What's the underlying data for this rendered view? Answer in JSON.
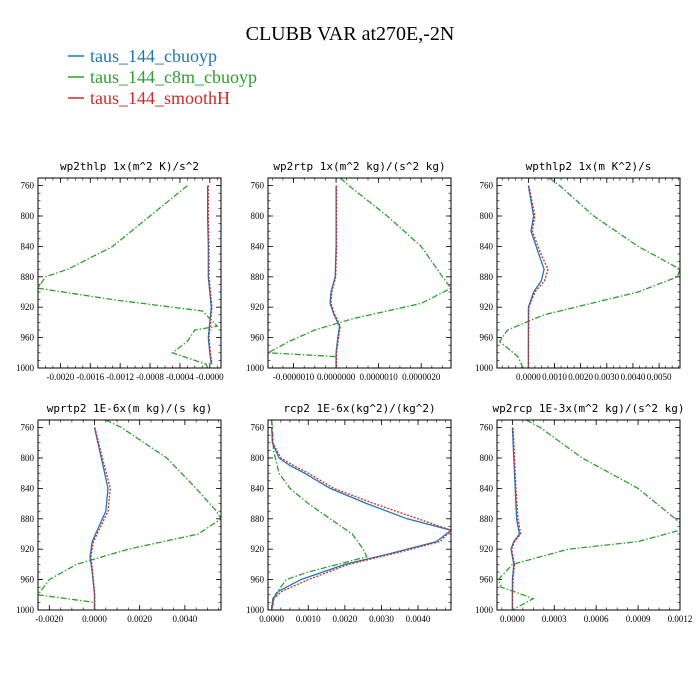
{
  "figure": {
    "title": "CLUBB VAR at270E,-2N"
  },
  "legend": [
    {
      "name": "taus_144_cbuoyp",
      "color": "#1f77b4",
      "dash": "solid"
    },
    {
      "name": "taus_144_c8m_cbuoyp",
      "color": "#2ca02c",
      "dash": "dashdot"
    },
    {
      "name": "taus_144_smoothH",
      "color": "#d62728",
      "dash": "dotted"
    }
  ],
  "chart_data": [
    {
      "type": "line",
      "title": "wp2thlp  1x(m^2 K)/s^2",
      "xlim": [
        -0.0023,
        0.00015
      ],
      "ylim": [
        1000,
        750
      ],
      "xticks": [
        -0.002,
        -0.0016,
        -0.0012,
        -0.0008,
        -0.0004,
        0.0
      ],
      "xtick_labels": [
        "-0.0020",
        "-0.0016",
        "-0.0012",
        "-0.0008",
        "-0.0004",
        "-0.0000"
      ],
      "yticks": [
        760,
        800,
        840,
        880,
        920,
        960,
        1000
      ],
      "series": [
        {
          "name": "taus_144_cbuoyp",
          "y": [
            760,
            800,
            840,
            880,
            900,
            920,
            940,
            960,
            980,
            995
          ],
          "x": [
            -3e-05,
            -3e-05,
            -2e-05,
            -2e-05,
            0.0,
            2e-05,
            0.0,
            -2e-05,
            0.0,
            2e-05
          ]
        },
        {
          "name": "taus_144_c8m_cbuoyp",
          "y": [
            760,
            800,
            840,
            870,
            880,
            895,
            910,
            925,
            945,
            950,
            965,
            980,
            995,
            1000
          ],
          "x": [
            -0.0003,
            -0.0008,
            -0.0013,
            -0.0019,
            -0.0022,
            -0.0023,
            -0.0013,
            -0.0001,
            0.0001,
            -0.0002,
            -0.0003,
            -0.0005,
            -5e-05,
            -3e-05
          ]
        },
        {
          "name": "taus_144_smoothH",
          "y": [
            760,
            800,
            840,
            880,
            900,
            920,
            940,
            960,
            980,
            995
          ],
          "x": [
            -2e-05,
            -2e-05,
            -1e-05,
            -1e-05,
            1e-05,
            3e-05,
            1e-05,
            -1e-05,
            1e-05,
            3e-05
          ]
        }
      ]
    },
    {
      "type": "line",
      "title": "wp2rtp  1x(m^2 kg)/(s^2 kg)",
      "xlim": [
        -1.6e-06,
        2.7e-06
      ],
      "ylim": [
        1000,
        750
      ],
      "xticks": [
        -1e-06,
        0.0,
        1e-06,
        2e-06
      ],
      "xtick_labels": [
        "-0.0000010",
        "0.0000000",
        "0.0000010",
        "0.0000020"
      ],
      "yticks": [
        760,
        800,
        840,
        880,
        920,
        960,
        1000
      ],
      "series": [
        {
          "name": "taus_144_cbuoyp",
          "y": [
            760,
            800,
            840,
            880,
            900,
            915,
            930,
            945,
            960,
            980,
            1000
          ],
          "x": [
            0.0,
            0.0,
            0.0,
            -2e-08,
            -1.2e-07,
            -1.4e-07,
            -5e-08,
            8e-08,
            4e-08,
            0.0,
            0.0
          ]
        },
        {
          "name": "taus_144_c8m_cbuoyp",
          "y": [
            750,
            760,
            800,
            840,
            880,
            895,
            915,
            935,
            950,
            965,
            980,
            985,
            1000
          ],
          "x": [
            1e-07,
            3e-07,
            1.2e-06,
            2e-06,
            2.5e-06,
            2.7e-06,
            2e-06,
            4e-07,
            -5e-07,
            -1.1e-06,
            -1.6e-06,
            0.0,
            0.0
          ]
        },
        {
          "name": "taus_144_smoothH",
          "y": [
            760,
            800,
            840,
            880,
            900,
            915,
            930,
            945,
            960,
            980,
            1000
          ],
          "x": [
            1e-08,
            1e-08,
            1e-08,
            -1e-08,
            -1e-07,
            -1.2e-07,
            -3e-08,
            1e-07,
            6e-08,
            1e-08,
            1e-08
          ]
        }
      ]
    },
    {
      "type": "line",
      "title": "wpthlp2  1x(m K^2)/s",
      "xlim": [
        -0.0012,
        0.0058
      ],
      "ylim": [
        1000,
        750
      ],
      "xticks": [
        0.0,
        0.001,
        0.002,
        0.003,
        0.004,
        0.005
      ],
      "xtick_labels": [
        "0.0000",
        "0.0010",
        "0.0020",
        "0.0030",
        "0.0040",
        "0.0050"
      ],
      "yticks": [
        760,
        800,
        840,
        880,
        920,
        960,
        1000
      ],
      "series": [
        {
          "name": "taus_144_cbuoyp",
          "y": [
            760,
            800,
            820,
            850,
            870,
            885,
            900,
            920,
            950,
            980,
            1000
          ],
          "x": [
            0.0,
            0.0002,
            0.0001,
            0.0004,
            0.0006,
            0.0005,
            0.0002,
            0.0,
            0.0,
            0.0,
            0.0
          ]
        },
        {
          "name": "taus_144_c8m_cbuoyp",
          "y": [
            750,
            760,
            800,
            840,
            870,
            880,
            900,
            930,
            950,
            965,
            985,
            1000
          ],
          "x": [
            0.0008,
            0.0012,
            0.0025,
            0.0042,
            0.0058,
            0.0057,
            0.0042,
            0.0006,
            -0.0008,
            -0.0011,
            -0.0004,
            -0.0002
          ]
        },
        {
          "name": "taus_144_smoothH",
          "y": [
            760,
            800,
            820,
            850,
            870,
            885,
            900,
            920,
            950,
            980,
            1000
          ],
          "x": [
            2e-05,
            0.00025,
            0.00015,
            0.00048,
            0.00075,
            0.00062,
            0.00025,
            2e-05,
            1e-05,
            0.0,
            0.0
          ]
        }
      ]
    },
    {
      "type": "line",
      "title": "wprtp2  1E-6x(m kg)/(s kg)",
      "xlim": [
        -0.0025,
        0.0056
      ],
      "ylim": [
        1000,
        750
      ],
      "xticks": [
        -0.002,
        0.0,
        0.002,
        0.004
      ],
      "xtick_labels": [
        "-0.0020",
        "0.0000",
        "0.0020",
        "0.0040"
      ],
      "yticks": [
        760,
        800,
        840,
        880,
        920,
        960,
        1000
      ],
      "series": [
        {
          "name": "taus_144_cbuoyp",
          "y": [
            760,
            800,
            840,
            870,
            890,
            910,
            930,
            950,
            980,
            1000
          ],
          "x": [
            0.0,
            0.0003,
            0.0006,
            0.0005,
            0.0002,
            -0.0001,
            -0.0002,
            -0.0001,
            0.0,
            0.0
          ]
        },
        {
          "name": "taus_144_c8m_cbuoyp",
          "y": [
            750,
            760,
            800,
            840,
            870,
            880,
            900,
            920,
            940,
            960,
            980,
            990,
            1000
          ],
          "x": [
            0.0005,
            0.0012,
            0.0032,
            0.0045,
            0.0054,
            0.0056,
            0.0046,
            0.0015,
            -0.0008,
            -0.002,
            -0.0025,
            0.0,
            0.0
          ]
        },
        {
          "name": "taus_144_smoothH",
          "y": [
            760,
            800,
            840,
            870,
            890,
            910,
            930,
            950,
            980,
            1000
          ],
          "x": [
            2e-05,
            0.00035,
            0.0007,
            0.0006,
            0.00028,
            -5e-05,
            -0.00016,
            -8e-05,
            1e-05,
            1e-05
          ]
        }
      ]
    },
    {
      "type": "line",
      "title": "rcp2  1E-6x(kg^2)/(kg^2)",
      "xlim": [
        -0.0001,
        0.0049
      ],
      "ylim": [
        1000,
        750
      ],
      "xticks": [
        0.0,
        0.001,
        0.002,
        0.003,
        0.004
      ],
      "xtick_labels": [
        "0.0000",
        "0.0010",
        "0.0020",
        "0.0030",
        "0.0040"
      ],
      "yticks": [
        760,
        800,
        840,
        880,
        920,
        960,
        1000
      ],
      "series": [
        {
          "name": "taus_144_cbuoyp",
          "y": [
            760,
            780,
            800,
            810,
            820,
            840,
            860,
            880,
            895,
            910,
            925,
            940,
            960,
            975,
            985,
            1000
          ],
          "x": [
            0.0,
            2e-05,
            0.0002,
            0.0005,
            0.0009,
            0.0016,
            0.0026,
            0.0037,
            0.0049,
            0.0045,
            0.0033,
            0.002,
            0.0008,
            0.0002,
            3e-05,
            0.0
          ]
        },
        {
          "name": "taus_144_c8m_cbuoyp",
          "y": [
            750,
            760,
            790,
            820,
            840,
            860,
            880,
            900,
            920,
            930,
            940,
            950,
            960,
            980,
            1000
          ],
          "x": [
            0.0,
            2e-05,
            5e-05,
            0.0002,
            0.0005,
            0.001,
            0.0016,
            0.0022,
            0.0025,
            0.0026,
            0.0018,
            0.001,
            0.0004,
            0.0001,
            0.0
          ]
        },
        {
          "name": "taus_144_smoothH",
          "y": [
            760,
            780,
            800,
            810,
            820,
            840,
            860,
            880,
            895,
            910,
            925,
            940,
            960,
            975,
            985,
            1000
          ],
          "x": [
            0.0,
            3e-05,
            0.00025,
            0.0006,
            0.001,
            0.0017,
            0.0028,
            0.004,
            0.0049,
            0.0046,
            0.0034,
            0.0021,
            0.001,
            0.0003,
            5e-05,
            0.0
          ]
        }
      ]
    },
    {
      "type": "line",
      "title": "wp2rcp  1E-3x(m^2 kg)/(s^2 kg)",
      "xlim": [
        -0.00011,
        0.0012
      ],
      "ylim": [
        1000,
        750
      ],
      "xticks": [
        0.0,
        0.0003,
        0.0006,
        0.0009,
        0.0012
      ],
      "xtick_labels": [
        "0.0000",
        "0.0003",
        "0.0006",
        "0.0009",
        "0.0012"
      ],
      "yticks": [
        760,
        800,
        840,
        880,
        920,
        960,
        1000
      ],
      "series": [
        {
          "name": "taus_144_cbuoyp",
          "y": [
            760,
            800,
            840,
            880,
            900,
            910,
            920,
            930,
            940,
            960,
            980,
            1000
          ],
          "x": [
            0.0,
            1e-05,
            2e-05,
            3e-05,
            5e-05,
            1e-05,
            -1e-05,
            0.0,
            1e-05,
            0.0,
            0.0,
            0.0
          ]
        },
        {
          "name": "taus_144_c8m_cbuoyp",
          "y": [
            750,
            760,
            800,
            840,
            870,
            885,
            895,
            910,
            920,
            940,
            960,
            970,
            975,
            985,
            1000
          ],
          "x": [
            0.0001,
            0.0002,
            0.0005,
            0.0009,
            0.0011,
            0.0012,
            0.0012,
            0.0009,
            0.0004,
            0.0,
            -0.0001,
            -8e-05,
            0.0,
            0.00015,
            0.0
          ]
        },
        {
          "name": "taus_144_smoothH",
          "y": [
            760,
            800,
            840,
            880,
            900,
            910,
            920,
            930,
            940,
            960,
            980,
            1000
          ],
          "x": [
            5e-06,
            1.5e-05,
            2.5e-05,
            4e-05,
            6e-05,
            1.5e-05,
            -5e-06,
            5e-06,
            1.5e-05,
            5e-06,
            0.0,
            0.0
          ]
        }
      ]
    }
  ]
}
